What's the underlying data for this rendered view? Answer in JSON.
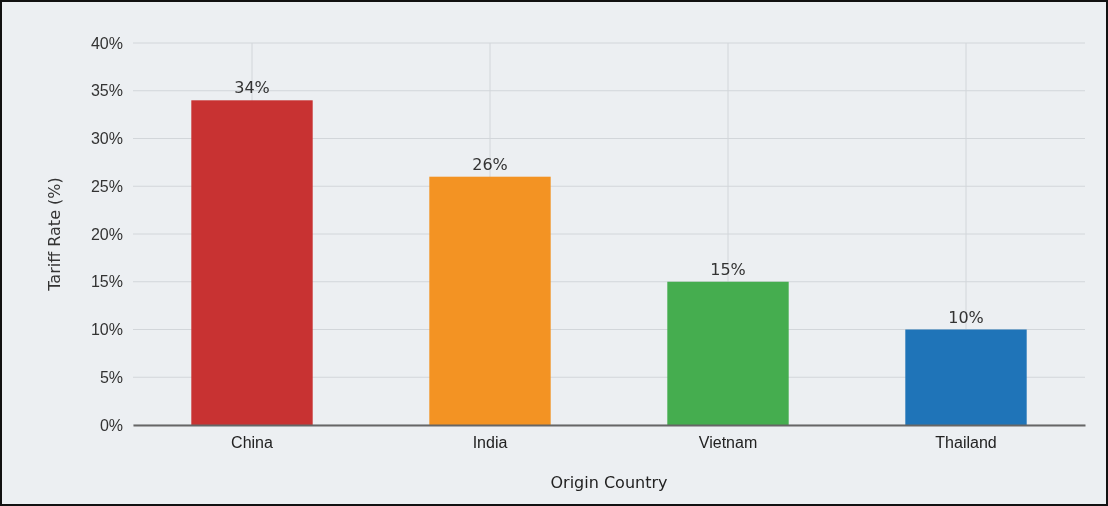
{
  "chart_data": {
    "type": "bar",
    "xlabel": "Origin Country",
    "ylabel": "Tariff Rate (%)",
    "categories": [
      "China",
      "India",
      "Vietnam",
      "Thailand"
    ],
    "values": [
      34,
      26,
      15,
      10
    ],
    "colors": [
      "#c83232",
      "#f39323",
      "#45ad4f",
      "#1f74b8"
    ],
    "value_labels": [
      "34%",
      "26%",
      "15%",
      "10%"
    ],
    "ylim": [
      0,
      40
    ],
    "yticks": [
      {
        "value": 0,
        "label": "0%"
      },
      {
        "value": 5,
        "label": "5%"
      },
      {
        "value": 10,
        "label": "10%"
      },
      {
        "value": 15,
        "label": "15%"
      },
      {
        "value": 20,
        "label": "20%"
      },
      {
        "value": 25,
        "label": "25%"
      },
      {
        "value": 30,
        "label": "30%"
      },
      {
        "value": 35,
        "label": "35%"
      },
      {
        "value": 40,
        "label": "40%"
      }
    ],
    "grid": true
  }
}
